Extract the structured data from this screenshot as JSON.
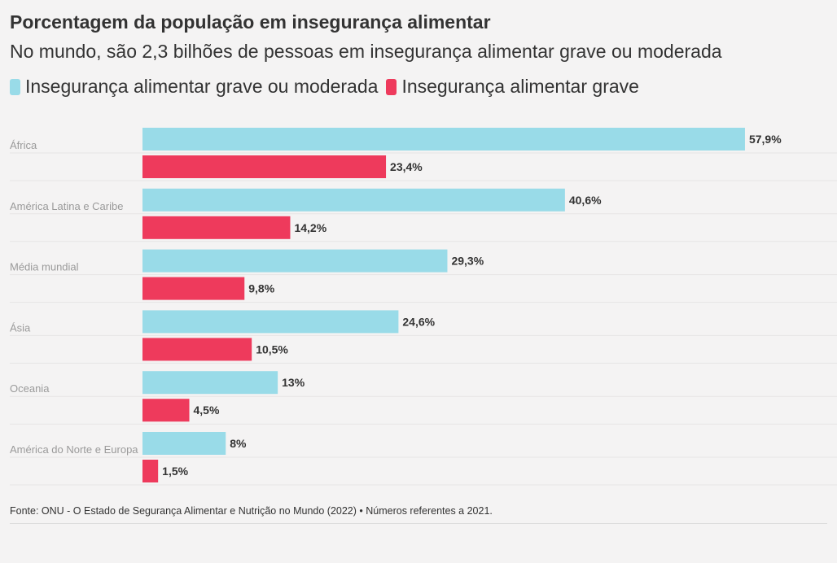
{
  "header": {
    "title": "Porcentagem da população em insegurança alimentar",
    "subtitle": "No mundo, são 2,3 bilhões de pessoas em insegurança alimentar grave ou moderada"
  },
  "colors": {
    "moderate": "#99dbe8",
    "severe": "#ee3a5c"
  },
  "chart_data": {
    "type": "bar",
    "orientation": "horizontal",
    "title": "Porcentagem da população em insegurança alimentar",
    "subtitle": "No mundo, são 2,3 bilhões de pessoas em insegurança alimentar grave ou moderada",
    "xlabel": "",
    "ylabel": "",
    "xlim": [
      0,
      60
    ],
    "legend_position": "top-left",
    "categories": [
      "África",
      "América Latina e Caribe",
      "Média mundial",
      "Ásia",
      "Oceania",
      "América do Norte e Europa"
    ],
    "series": [
      {
        "name": "Insegurança alimentar grave ou moderada",
        "values": [
          57.9,
          40.6,
          29.3,
          24.6,
          13,
          8
        ],
        "labels": [
          "57,9%",
          "40,6%",
          "29,3%",
          "24,6%",
          "13%",
          "8%"
        ]
      },
      {
        "name": "Insegurança alimentar grave",
        "values": [
          23.4,
          14.2,
          9.8,
          10.5,
          4.5,
          1.5
        ],
        "labels": [
          "23,4%",
          "14,2%",
          "9,8%",
          "10,5%",
          "4,5%",
          "1,5%"
        ]
      }
    ]
  },
  "footer": {
    "source": "Fonte: ONU - O Estado de Segurança Alimentar e Nutrição no Mundo (2022) • Números referentes a 2021."
  }
}
